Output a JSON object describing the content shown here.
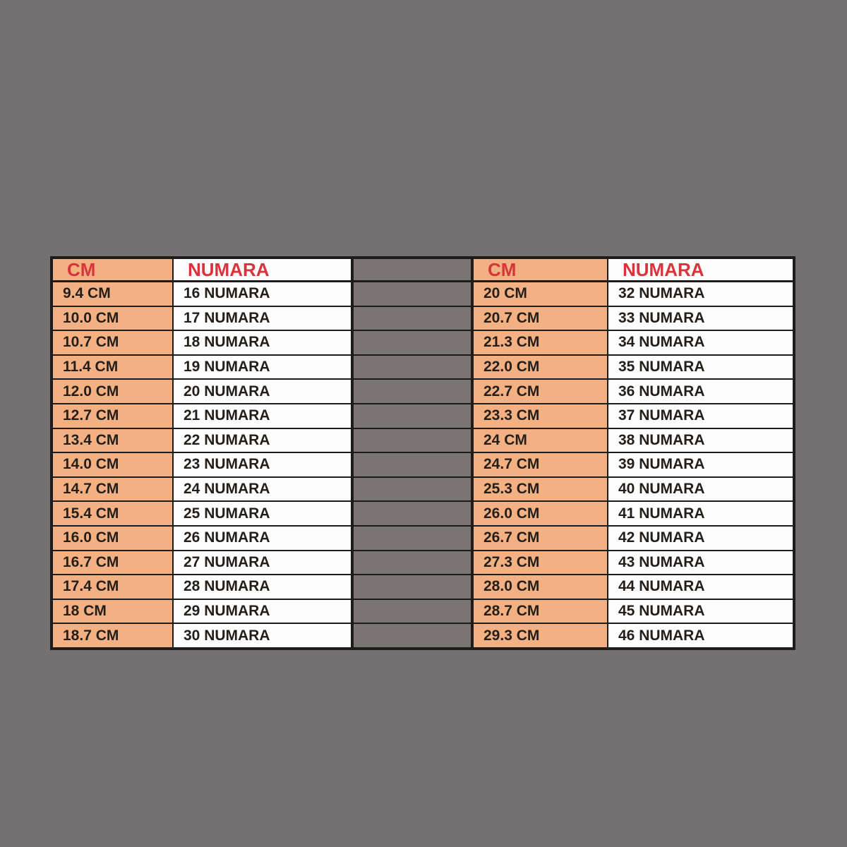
{
  "colors": {
    "background": "#757072",
    "header_bg": "#a9cce9",
    "header_text": "#d7343c",
    "cm_cell_bg": "#f3b183",
    "numara_cell_bg": "#fdfdfd",
    "spacer_bg": "#7a7573",
    "border": "#1e1c1a",
    "cell_text": "#241e19"
  },
  "chart_data": [
    {
      "type": "table",
      "columns": [
        "CM",
        "NUMARA"
      ],
      "rows": [
        [
          "9.4 CM",
          "16 NUMARA"
        ],
        [
          "10.0 CM",
          "17 NUMARA"
        ],
        [
          "10.7 CM",
          "18 NUMARA"
        ],
        [
          "11.4 CM",
          "19 NUMARA"
        ],
        [
          "12.0 CM",
          "20 NUMARA"
        ],
        [
          "12.7 CM",
          "21 NUMARA"
        ],
        [
          "13.4 CM",
          "22 NUMARA"
        ],
        [
          "14.0 CM",
          "23 NUMARA"
        ],
        [
          "14.7 CM",
          "24 NUMARA"
        ],
        [
          "15.4 CM",
          "25 NUMARA"
        ],
        [
          "16.0 CM",
          "26 NUMARA"
        ],
        [
          "16.7 CM",
          "27 NUMARA"
        ],
        [
          "17.4 CM",
          "28 NUMARA"
        ],
        [
          "18 CM",
          "29 NUMARA"
        ],
        [
          "18.7 CM",
          "30 NUMARA"
        ]
      ]
    },
    {
      "type": "table",
      "columns": [
        "CM",
        "NUMARA"
      ],
      "rows": [
        [
          "20 CM",
          "32 NUMARA"
        ],
        [
          "20.7 CM",
          "33 NUMARA"
        ],
        [
          "21.3 CM",
          "34 NUMARA"
        ],
        [
          "22.0 CM",
          "35 NUMARA"
        ],
        [
          "22.7 CM",
          "36 NUMARA"
        ],
        [
          "23.3 CM",
          "37 NUMARA"
        ],
        [
          "24 CM",
          "38 NUMARA"
        ],
        [
          "24.7 CM",
          "39 NUMARA"
        ],
        [
          "25.3 CM",
          "40 NUMARA"
        ],
        [
          "26.0 CM",
          "41 NUMARA"
        ],
        [
          "26.7 CM",
          "42 NUMARA"
        ],
        [
          "27.3 CM",
          "43 NUMARA"
        ],
        [
          "28.0 CM",
          "44 NUMARA"
        ],
        [
          "28.7 CM",
          "45 NUMARA"
        ],
        [
          "29.3 CM",
          "46 NUMARA"
        ]
      ]
    }
  ]
}
